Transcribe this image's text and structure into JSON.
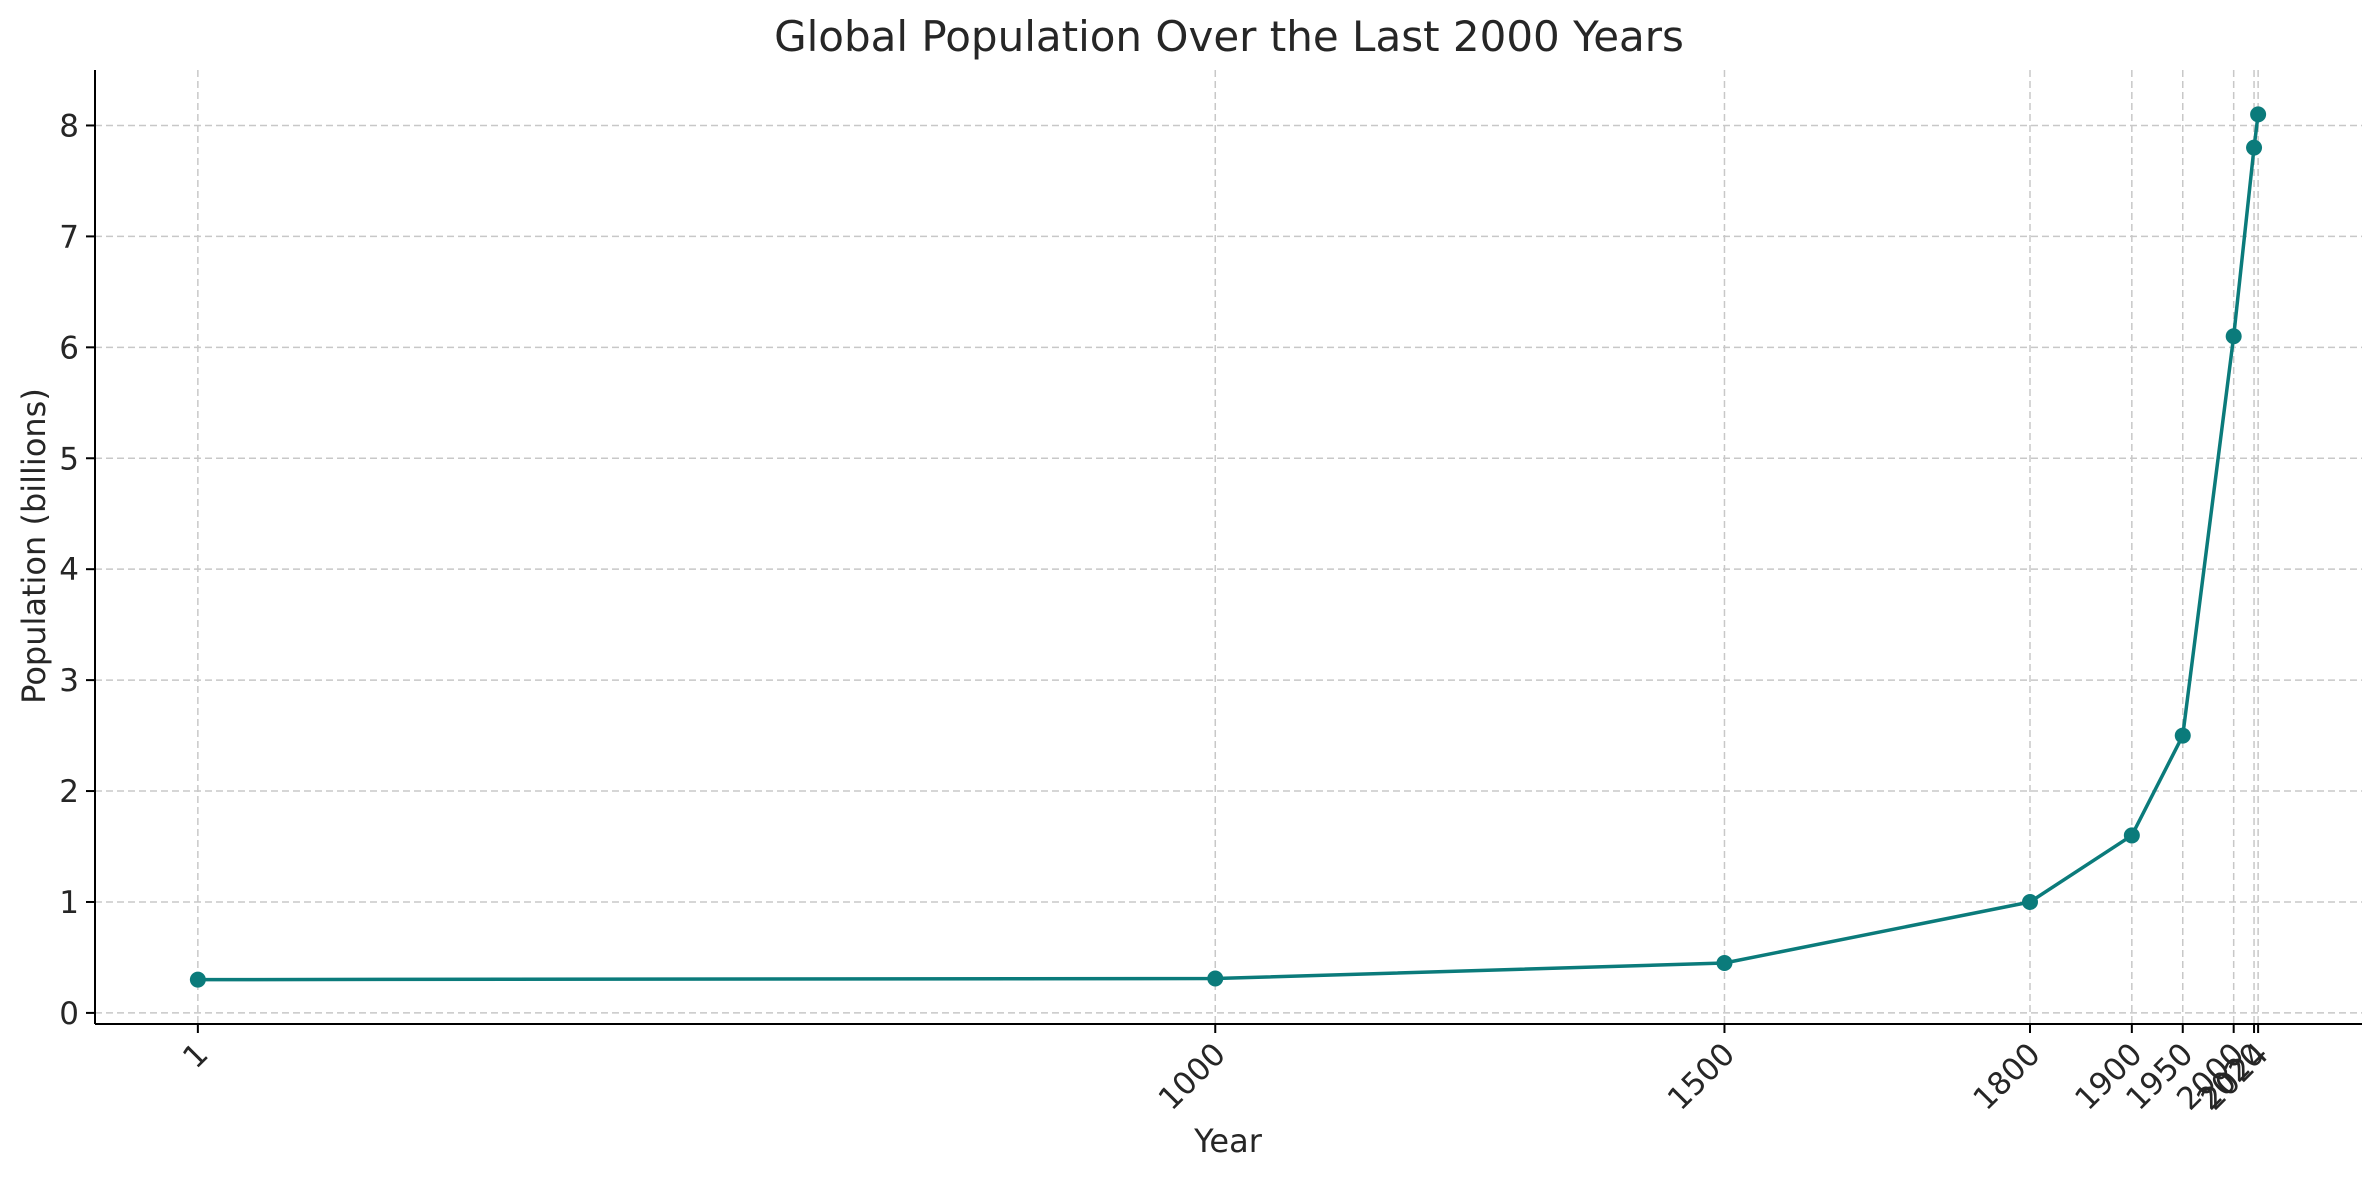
{
  "chart_data": {
    "type": "line",
    "title": "Global Population Over the Last 2000 Years",
    "xlabel": "Year",
    "ylabel": "Population (billions)",
    "x": [
      1,
      1000,
      1500,
      1800,
      1900,
      1950,
      2000,
      2020,
      2024
    ],
    "x_tick_labels": [
      "1",
      "1000",
      "1500",
      "1800",
      "1900",
      "1950",
      "2000",
      "2020",
      "2024"
    ],
    "series": [
      {
        "values": [
          0.3,
          0.31,
          0.45,
          1.0,
          1.6,
          2.5,
          6.1,
          7.8,
          8.1
        ],
        "color": "#0b7b7b"
      }
    ],
    "y_ticks": [
      0,
      1,
      2,
      3,
      4,
      5,
      6,
      7,
      8
    ],
    "xlim": [
      -100,
      2126
    ],
    "ylim": [
      -0.1,
      8.5
    ],
    "grid": true,
    "markers": true
  },
  "colors": {
    "line": "#0b7b7b",
    "grid": "#c8c8c8",
    "axis": "#000000",
    "text": "#262626"
  }
}
